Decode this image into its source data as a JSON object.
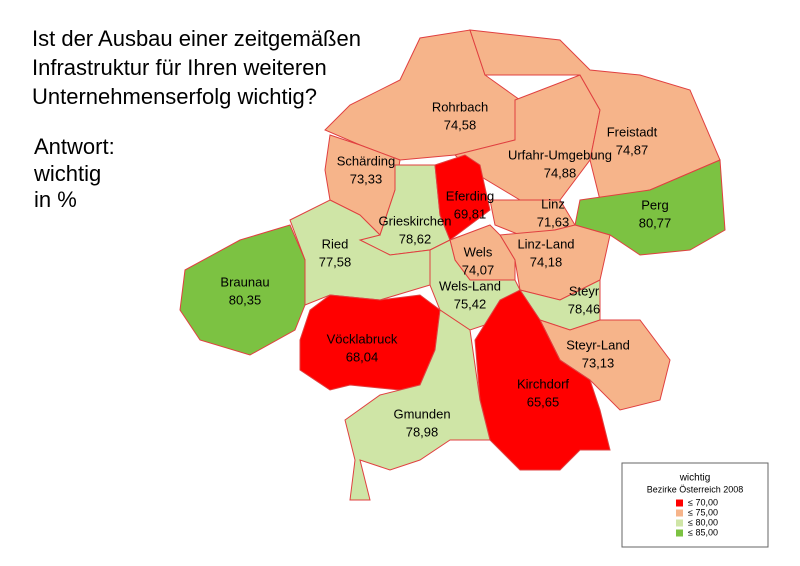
{
  "title_lines": [
    "Ist der Ausbau einer zeitgemäßen",
    "Infrastruktur für Ihren weiteren",
    "Unternehmenserfolg wichtig?"
  ],
  "subtitle_lines": [
    "Antwort:",
    "wichtig",
    "in %"
  ],
  "districts": {
    "names": [
      "Rohrbach",
      "Urfahr-Umgebung",
      "Freistadt",
      "Perg",
      "Schärding",
      "Grieskirchen",
      "Eferding",
      "Ried",
      "Braunau",
      "Linz",
      "Linz-Land",
      "Wels",
      "Wels-Land",
      "Steyr",
      "Steyr-Land",
      "Kirchdorf",
      "Vöcklabruck",
      "Gmunden"
    ],
    "values": [
      74.58,
      74.88,
      74.87,
      80.77,
      73.33,
      78.62,
      69.81,
      77.58,
      80.35,
      71.63,
      74.18,
      74.07,
      75.42,
      78.46,
      73.13,
      65.65,
      68.04,
      78.98
    ],
    "value_labels": [
      "74,58",
      "74,88",
      "74,87",
      "80,77",
      "73,33",
      "78,62",
      "69,81",
      "77,58",
      "80,35",
      "71,63",
      "74,18",
      "74,07",
      "75,42",
      "78,46",
      "73,13",
      "65,65",
      "68,04",
      "78,98"
    ]
  },
  "legend": {
    "title": "wichtig",
    "subtitle": "Bezirke Österreich 2008",
    "classes": [
      {
        "value": 70,
        "label": "≤ 70,00",
        "color": "#ff0000"
      },
      {
        "value": 75,
        "label": "≤ 75,00",
        "color": "#f6b48a"
      },
      {
        "value": 80,
        "label": "≤ 80,00",
        "color": "#cfe5a6"
      },
      {
        "value": 85,
        "label": "≤ 85,00",
        "color": "#7cc242"
      }
    ]
  }
}
